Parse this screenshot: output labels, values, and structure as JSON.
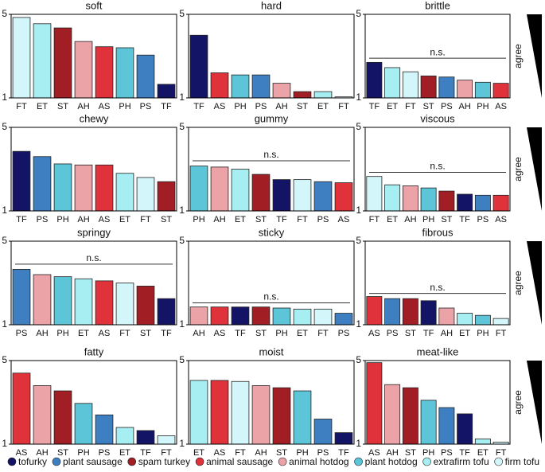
{
  "chart_data": [
    {
      "type": "bar",
      "title": "soft",
      "categories": [
        "FT",
        "ET",
        "ST",
        "AH",
        "AS",
        "PH",
        "PS",
        "TF"
      ],
      "values": [
        4.85,
        4.55,
        4.35,
        3.7,
        3.45,
        3.4,
        3.05,
        1.65
      ],
      "colors": [
        "#d3f6fa",
        "#a6eef2",
        "#a01e24",
        "#eba3a8",
        "#e0323a",
        "#5cc6d8",
        "#3d7fc0",
        "#141466"
      ],
      "ylim": [
        1,
        5
      ],
      "yticks": [
        1,
        5
      ]
    },
    {
      "type": "bar",
      "title": "hard",
      "categories": [
        "TF",
        "AS",
        "PH",
        "PS",
        "AH",
        "ST",
        "ET",
        "FT"
      ],
      "values": [
        4.0,
        2.2,
        2.1,
        2.1,
        1.7,
        1.3,
        1.3,
        1.05
      ],
      "colors": [
        "#141466",
        "#e0323a",
        "#5cc6d8",
        "#3d7fc0",
        "#eba3a8",
        "#a01e24",
        "#a6eef2",
        "#d3f6fa"
      ],
      "ylim": [
        1,
        5
      ],
      "yticks": [
        1,
        5
      ]
    },
    {
      "type": "bar",
      "title": "brittle",
      "categories": [
        "TF",
        "ET",
        "FT",
        "ST",
        "PS",
        "AH",
        "PH",
        "AS"
      ],
      "values": [
        2.7,
        2.45,
        2.25,
        2.05,
        2.0,
        1.85,
        1.75,
        1.7
      ],
      "colors": [
        "#141466",
        "#a6eef2",
        "#d3f6fa",
        "#a01e24",
        "#3d7fc0",
        "#eba3a8",
        "#5cc6d8",
        "#e0323a"
      ],
      "ylim": [
        1,
        5
      ],
      "yticks": [
        1,
        5
      ],
      "annotation": {
        "text": "n.s.",
        "value": 2.9
      },
      "side_label": "agree"
    },
    {
      "type": "bar",
      "title": "chewy",
      "categories": [
        "TF",
        "PS",
        "PH",
        "AH",
        "AS",
        "ET",
        "FT",
        "ST"
      ],
      "values": [
        3.85,
        3.6,
        3.25,
        3.2,
        3.2,
        2.8,
        2.6,
        2.4
      ],
      "colors": [
        "#141466",
        "#3d7fc0",
        "#5cc6d8",
        "#eba3a8",
        "#e0323a",
        "#a6eef2",
        "#d3f6fa",
        "#a01e24"
      ],
      "ylim": [
        1,
        5
      ],
      "yticks": [
        1,
        5
      ]
    },
    {
      "type": "bar",
      "title": "gummy",
      "categories": [
        "PH",
        "AH",
        "ET",
        "ST",
        "TF",
        "FT",
        "PS",
        "AS"
      ],
      "values": [
        3.15,
        3.1,
        3.0,
        2.75,
        2.5,
        2.5,
        2.4,
        2.35
      ],
      "colors": [
        "#5cc6d8",
        "#eba3a8",
        "#a6eef2",
        "#a01e24",
        "#141466",
        "#d3f6fa",
        "#3d7fc0",
        "#e0323a"
      ],
      "ylim": [
        1,
        5
      ],
      "yticks": [
        1,
        5
      ],
      "annotation": {
        "text": "n.s.",
        "value": 3.4
      }
    },
    {
      "type": "bar",
      "title": "viscous",
      "categories": [
        "FT",
        "ET",
        "AH",
        "PH",
        "ST",
        "TF",
        "PS",
        "AS"
      ],
      "values": [
        2.65,
        2.25,
        2.2,
        2.1,
        1.95,
        1.8,
        1.75,
        1.75
      ],
      "colors": [
        "#d3f6fa",
        "#a6eef2",
        "#eba3a8",
        "#5cc6d8",
        "#a01e24",
        "#141466",
        "#3d7fc0",
        "#e0323a"
      ],
      "ylim": [
        1,
        5
      ],
      "yticks": [
        1,
        5
      ],
      "annotation": {
        "text": "n.s.",
        "value": 2.85
      },
      "side_label": "agree"
    },
    {
      "type": "bar",
      "title": "springy",
      "categories": [
        "PS",
        "AH",
        "PH",
        "ET",
        "AS",
        "FT",
        "ST",
        "TF"
      ],
      "values": [
        3.65,
        3.4,
        3.3,
        3.2,
        3.1,
        3.0,
        2.85,
        2.25
      ],
      "colors": [
        "#3d7fc0",
        "#eba3a8",
        "#5cc6d8",
        "#a6eef2",
        "#e0323a",
        "#d3f6fa",
        "#a01e24",
        "#141466"
      ],
      "ylim": [
        1,
        5
      ],
      "yticks": [
        1,
        5
      ],
      "annotation": {
        "text": "n.s.",
        "value": 3.9
      }
    },
    {
      "type": "bar",
      "title": "sticky",
      "categories": [
        "AH",
        "AS",
        "TF",
        "ST",
        "PH",
        "ET",
        "FT",
        "PS"
      ],
      "values": [
        1.85,
        1.85,
        1.85,
        1.85,
        1.8,
        1.75,
        1.75,
        1.55
      ],
      "colors": [
        "#eba3a8",
        "#e0323a",
        "#141466",
        "#a01e24",
        "#5cc6d8",
        "#a6eef2",
        "#d3f6fa",
        "#3d7fc0"
      ],
      "ylim": [
        1,
        5
      ],
      "yticks": [
        1,
        5
      ],
      "annotation": {
        "text": "n.s.",
        "value": 2.05
      }
    },
    {
      "type": "bar",
      "title": "fibrous",
      "categories": [
        "AS",
        "PS",
        "ST",
        "TF",
        "AH",
        "ET",
        "PH",
        "FT"
      ],
      "values": [
        2.35,
        2.25,
        2.25,
        2.15,
        1.8,
        1.55,
        1.45,
        1.3
      ],
      "colors": [
        "#e0323a",
        "#3d7fc0",
        "#a01e24",
        "#141466",
        "#eba3a8",
        "#a6eef2",
        "#5cc6d8",
        "#d3f6fa"
      ],
      "ylim": [
        1,
        5
      ],
      "yticks": [
        1,
        5
      ],
      "annotation": {
        "text": "n.s.",
        "value": 2.5
      },
      "side_label": "agree"
    },
    {
      "type": "bar",
      "title": "fatty",
      "categories": [
        "AS",
        "AH",
        "ST",
        "PH",
        "PS",
        "ET",
        "TF",
        "FT"
      ],
      "values": [
        4.4,
        3.8,
        3.55,
        2.95,
        2.4,
        1.8,
        1.65,
        1.4
      ],
      "colors": [
        "#e0323a",
        "#eba3a8",
        "#a01e24",
        "#5cc6d8",
        "#3d7fc0",
        "#a6eef2",
        "#141466",
        "#d3f6fa"
      ],
      "ylim": [
        1,
        5
      ],
      "yticks": [
        1,
        5
      ]
    },
    {
      "type": "bar",
      "title": "moist",
      "categories": [
        "ET",
        "AS",
        "FT",
        "AH",
        "ST",
        "PH",
        "PS",
        "TF"
      ],
      "values": [
        4.05,
        4.05,
        4.0,
        3.8,
        3.7,
        3.55,
        2.2,
        1.55
      ],
      "colors": [
        "#a6eef2",
        "#e0323a",
        "#d3f6fa",
        "#eba3a8",
        "#a01e24",
        "#5cc6d8",
        "#3d7fc0",
        "#141466"
      ],
      "ylim": [
        1,
        5
      ],
      "yticks": [
        1,
        5
      ]
    },
    {
      "type": "bar",
      "title": "meat-like",
      "categories": [
        "AS",
        "AH",
        "ST",
        "PH",
        "PS",
        "TF",
        "ET",
        "FT"
      ],
      "values": [
        4.9,
        3.85,
        3.7,
        3.1,
        2.75,
        2.45,
        1.25,
        1.1
      ],
      "colors": [
        "#e0323a",
        "#eba3a8",
        "#a01e24",
        "#5cc6d8",
        "#3d7fc0",
        "#141466",
        "#a6eef2",
        "#d3f6fa"
      ],
      "ylim": [
        1,
        5
      ],
      "yticks": [
        1,
        5
      ],
      "side_label": "agree"
    }
  ],
  "legend": [
    {
      "name": "tofurky",
      "color": "#141466"
    },
    {
      "name": "plant sausage",
      "color": "#3d7fc0"
    },
    {
      "name": "spam turkey",
      "color": "#a01e24"
    },
    {
      "name": "animal sausage",
      "color": "#e0323a"
    },
    {
      "name": "animal hotdog",
      "color": "#eba3a8"
    },
    {
      "name": "plant hotdog",
      "color": "#5cc6d8"
    },
    {
      "name": "extrafirm tofu",
      "color": "#a6eef2"
    },
    {
      "name": "firm tofu",
      "color": "#d3f6fa"
    }
  ]
}
